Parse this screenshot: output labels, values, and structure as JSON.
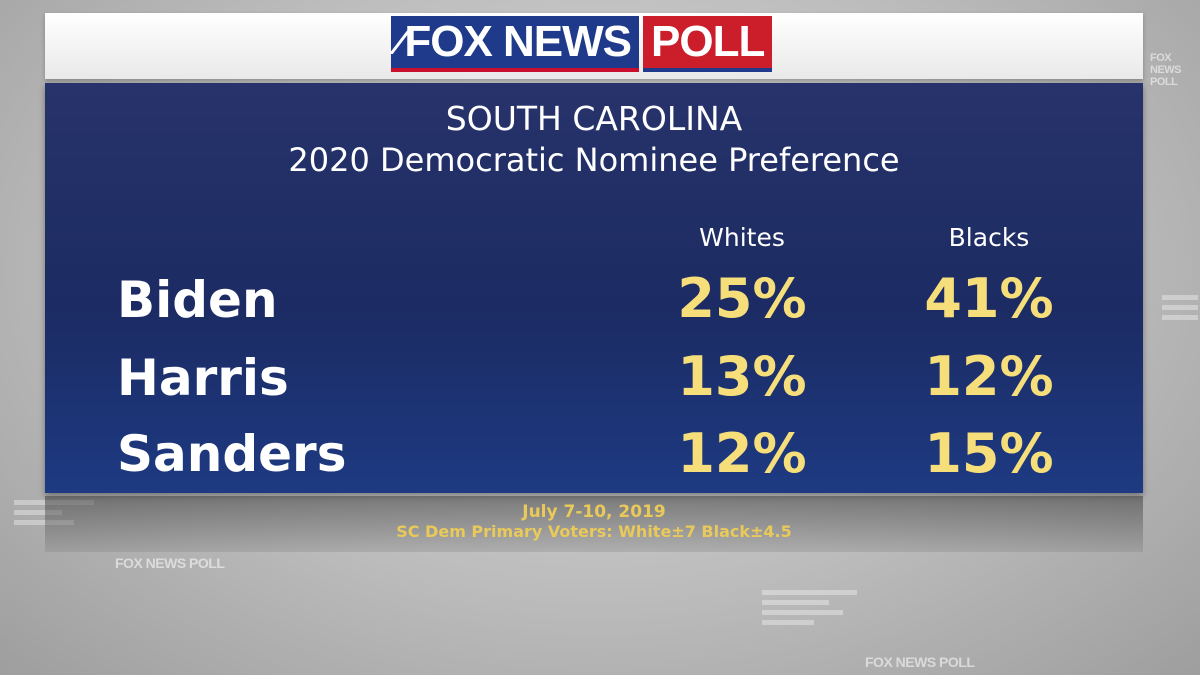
{
  "logo": {
    "fox_news": "FOX NEWS",
    "poll": "POLL"
  },
  "watermarks": [
    "FOX NEWS POLL",
    "FOX NEWS POLL",
    "FOX NEWS POLL"
  ],
  "chart_data": {
    "type": "table",
    "title": "SOUTH CAROLINA",
    "subtitle": "2020 Democratic Nominee Preference",
    "columns": [
      "Whites",
      "Blacks"
    ],
    "rows": [
      {
        "name": "Biden",
        "values": [
          "25%",
          "41%"
        ]
      },
      {
        "name": "Harris",
        "values": [
          "13%",
          "12%"
        ]
      },
      {
        "name": "Sanders",
        "values": [
          "12%",
          "15%"
        ]
      }
    ],
    "numeric": {
      "Whites": [
        25,
        13,
        12
      ],
      "Blacks": [
        41,
        12,
        15
      ]
    },
    "value_color": "#f6df7b"
  },
  "footer": {
    "date": "July 7-10, 2019",
    "note": "SC Dem Primary Voters: White±7 Black±4.5"
  }
}
